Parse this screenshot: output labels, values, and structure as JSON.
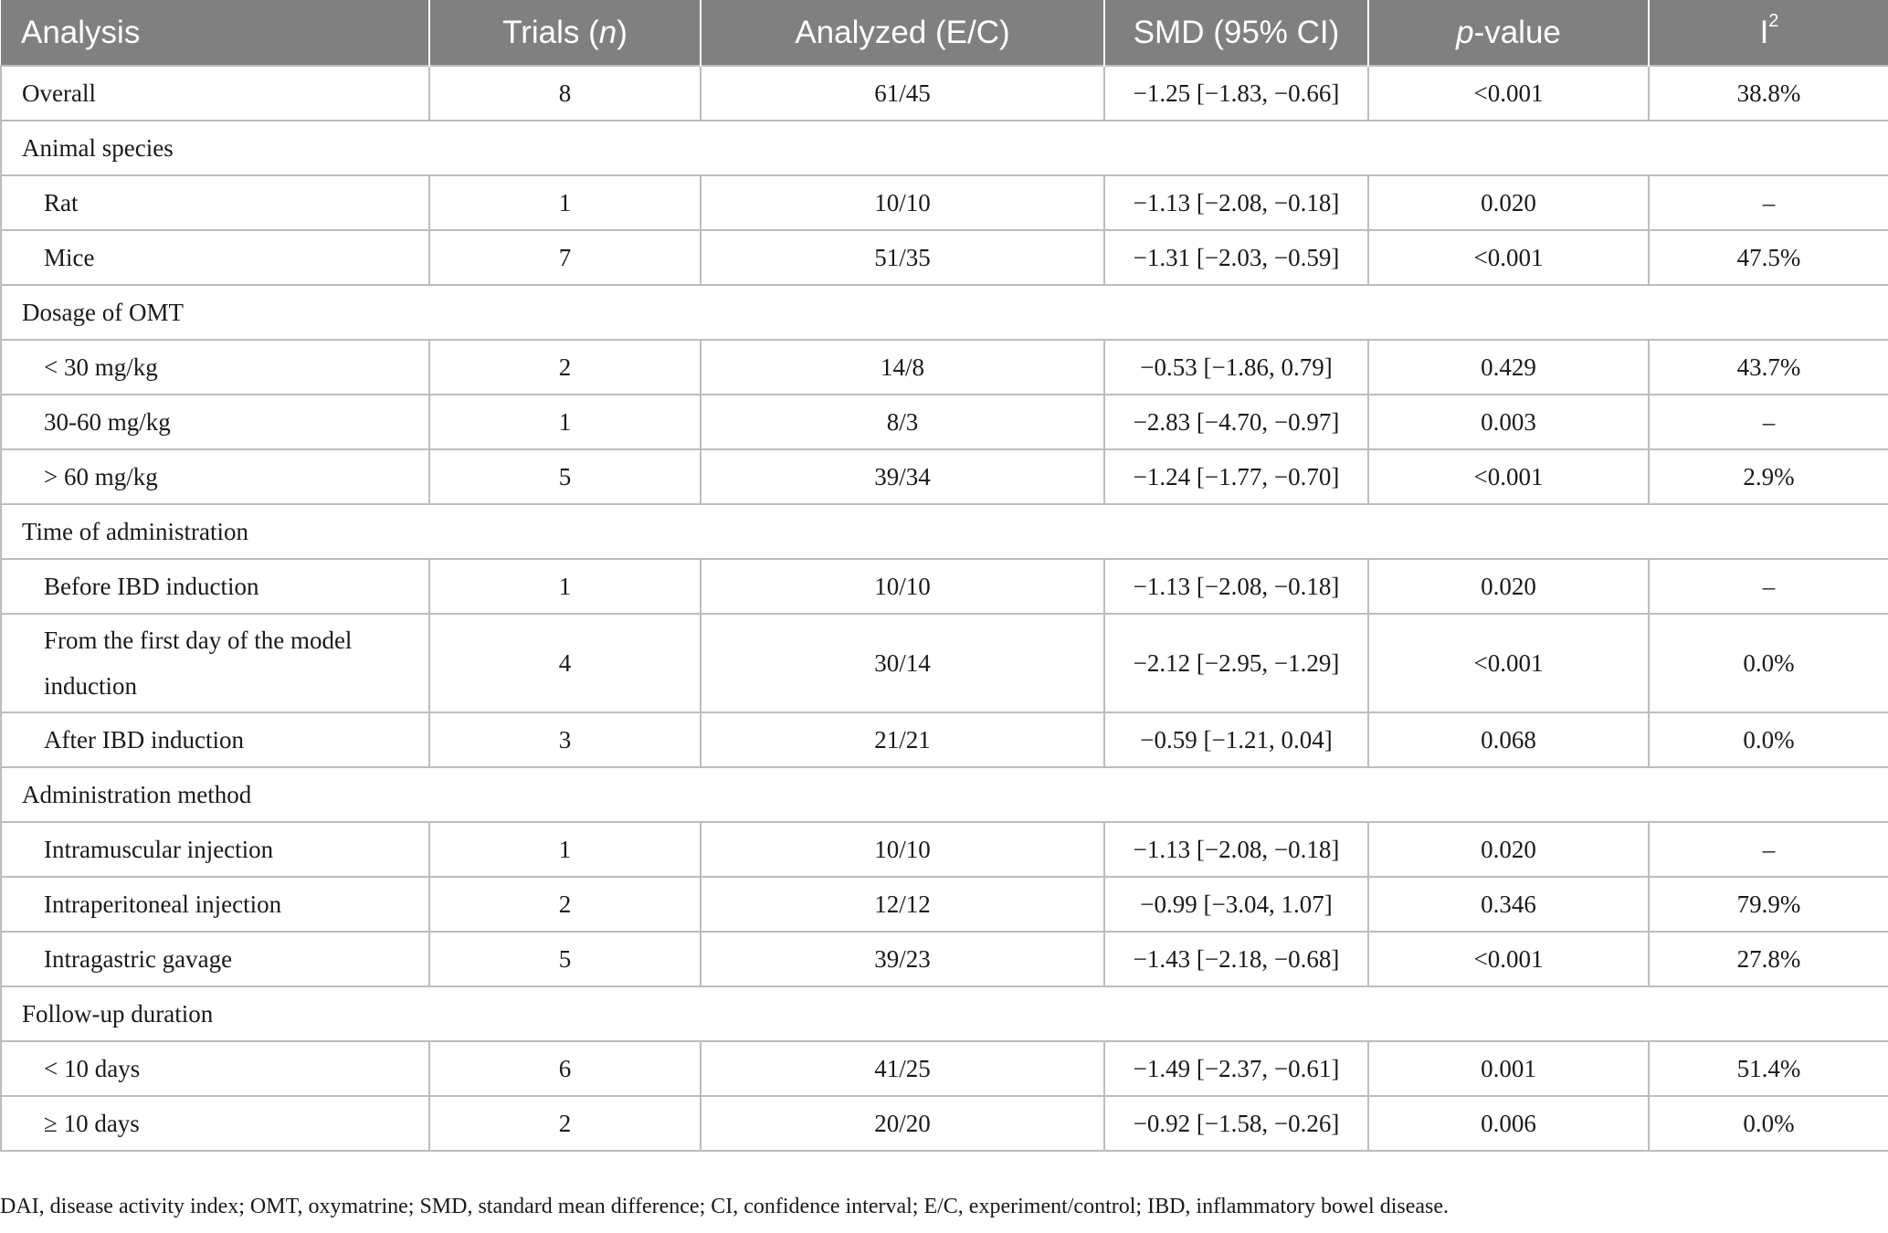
{
  "header": {
    "analysis": "Analysis",
    "trials_text": "Trials (",
    "trials_italic": "n",
    "trials_close": ")",
    "analyzed": "Analyzed (E/C)",
    "smd": "SMD (95% CI)",
    "p_italic": "p",
    "p_rest": "-value",
    "i2_base": "I",
    "i2_sup": "2"
  },
  "rows": [
    {
      "label": "Overall",
      "trials": "8",
      "analyzed": "61/45",
      "smd": "−1.25 [−1.83, −0.66]",
      "p": "<0.001",
      "i2": "38.8%"
    },
    {
      "group": "Animal species"
    },
    {
      "label": "Rat",
      "trials": "1",
      "analyzed": "10/10",
      "smd": "−1.13 [−2.08, −0.18]",
      "p": "0.020",
      "i2": "–"
    },
    {
      "label": "Mice",
      "trials": "7",
      "analyzed": "51/35",
      "smd": "−1.31 [−2.03, −0.59]",
      "p": "<0.001",
      "i2": "47.5%"
    },
    {
      "group": "Dosage of OMT"
    },
    {
      "label": "< 30 mg/kg",
      "trials": "2",
      "analyzed": "14/8",
      "smd": "−0.53 [−1.86, 0.79]",
      "p": "0.429",
      "i2": "43.7%"
    },
    {
      "label": "30-60 mg/kg",
      "trials": "1",
      "analyzed": "8/3",
      "smd": "−2.83 [−4.70, −0.97]",
      "p": "0.003",
      "i2": "–"
    },
    {
      "label": "> 60 mg/kg",
      "trials": "5",
      "analyzed": "39/34",
      "smd": "−1.24 [−1.77, −0.70]",
      "p": "<0.001",
      "i2": "2.9%"
    },
    {
      "group": "Time of administration"
    },
    {
      "label": "Before IBD induction",
      "trials": "1",
      "analyzed": "10/10",
      "smd": "−1.13 [−2.08, −0.18]",
      "p": "0.020",
      "i2": "–"
    },
    {
      "label_line1": "From the first day of the model",
      "label_line2": "induction",
      "trials": "4",
      "analyzed": "30/14",
      "smd": "−2.12 [−2.95, −1.29]",
      "p": "<0.001",
      "i2": "0.0%"
    },
    {
      "label": "After IBD induction",
      "trials": "3",
      "analyzed": "21/21",
      "smd": "−0.59 [−1.21, 0.04]",
      "p": "0.068",
      "i2": "0.0%"
    },
    {
      "group": "Administration method"
    },
    {
      "label": "Intramuscular injection",
      "trials": "1",
      "analyzed": "10/10",
      "smd": "−1.13 [−2.08, −0.18]",
      "p": "0.020",
      "i2": "–"
    },
    {
      "label": "Intraperitoneal injection",
      "trials": "2",
      "analyzed": "12/12",
      "smd": "−0.99 [−3.04, 1.07]",
      "p": "0.346",
      "i2": "79.9%"
    },
    {
      "label": "Intragastric gavage",
      "trials": "5",
      "analyzed": "39/23",
      "smd": "−1.43 [−2.18, −0.68]",
      "p": "<0.001",
      "i2": "27.8%"
    },
    {
      "group": "Follow-up duration"
    },
    {
      "label": "< 10 days",
      "trials": "6",
      "analyzed": "41/25",
      "smd": "−1.49 [−2.37, −0.61]",
      "p": "0.001",
      "i2": "51.4%"
    },
    {
      "label": "≥ 10 days",
      "trials": "2",
      "analyzed": "20/20",
      "smd": "−0.92 [−1.58, −0.26]",
      "p": "0.006",
      "i2": "0.0%"
    }
  ],
  "footnote": "DAI, disease activity index; OMT, oxymatrine; SMD, standard mean difference; CI, confidence interval; E/C, experiment/control; IBD, inflammatory bowel disease."
}
